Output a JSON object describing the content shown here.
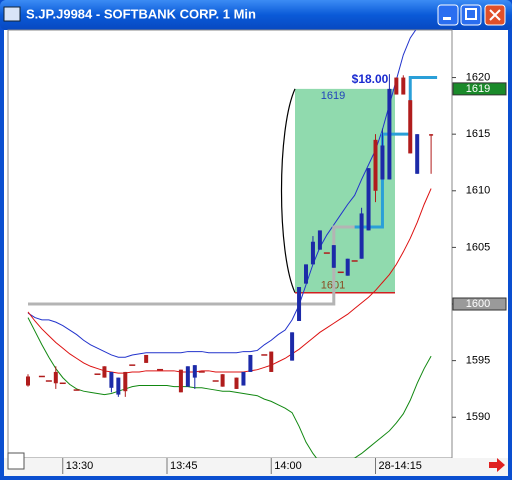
{
  "window": {
    "title": "S.JP.J9984 - SOFTBANK CORP. 1 Min"
  },
  "chart_data": {
    "type": "candlestick",
    "categories": [
      null,
      null,
      null,
      null,
      null,
      "13:30",
      null,
      null,
      null,
      null,
      null,
      null,
      null,
      null,
      null,
      null,
      null,
      null,
      null,
      null,
      "13:45",
      null,
      null,
      null,
      null,
      null,
      null,
      null,
      null,
      null,
      null,
      null,
      null,
      null,
      null,
      "14:00",
      null,
      null,
      null,
      null,
      null,
      null,
      null,
      null,
      null,
      null,
      null,
      null,
      null,
      null,
      "28-14:15",
      null,
      null,
      null,
      null,
      null,
      null,
      null,
      null
    ],
    "open": [
      1593.6,
      null,
      1593.6,
      1593.2,
      1594,
      1593,
      null,
      1592.4,
      null,
      null,
      1593.8,
      1594.5,
      1592.6,
      1592,
      1594,
      1594.6,
      null,
      1595.5,
      null,
      1594.2,
      null,
      null,
      1594.2,
      1592.7,
      1593.5,
      1594,
      null,
      1593.2,
      1593.8,
      null,
      1593.5,
      1592.8,
      1594,
      null,
      1595.5,
      1595.8,
      null,
      null,
      1595,
      1598.5,
      1601.8,
      1603.5,
      1604.8,
      1604.5,
      1603.2,
      1602.8,
      1602.5,
      1603.8,
      1604,
      1606.5,
      1614.5,
      1611,
      1611,
      1620,
      1620,
      1618,
      1611.5,
      null,
      1615
    ],
    "high": [
      1593.8,
      null,
      1593.6,
      1593.2,
      1594.5,
      1593,
      null,
      1592.4,
      null,
      null,
      1593.8,
      1594.5,
      1594,
      1593.5,
      1594,
      1594.6,
      null,
      1595.5,
      null,
      1594.2,
      null,
      null,
      1594.2,
      1594.5,
      1594.6,
      1594,
      null,
      1593.2,
      1593.8,
      null,
      1593.5,
      1594,
      1595.5,
      null,
      1595.5,
      1595.8,
      null,
      null,
      1597.5,
      1601.5,
      1603.5,
      1606,
      1606.5,
      1604.5,
      1605.2,
      1602.8,
      1604,
      1603.8,
      1608.5,
      1612,
      1615,
      1615.5,
      1620.3,
      1620,
      1620.2,
      1618,
      1615,
      null,
      1615
    ],
    "low": [
      1592.7,
      null,
      1593.6,
      1593.2,
      1592.5,
      1593,
      null,
      1592.4,
      null,
      null,
      1593.8,
      1593.5,
      1592.2,
      1591.8,
      1591.8,
      1594.6,
      null,
      1594.8,
      null,
      1594.2,
      null,
      null,
      1592.2,
      1592.7,
      1592.5,
      1594,
      null,
      1593.2,
      1592.7,
      null,
      1592.5,
      1592.8,
      1594,
      null,
      1595.5,
      1594,
      null,
      null,
      1595,
      1598.5,
      1601.8,
      1603.5,
      1604.8,
      1604.5,
      1603.2,
      1602.8,
      1602.5,
      1603.8,
      1604,
      1606.5,
      1609,
      1611,
      1611,
      1618.5,
      1618.5,
      1613.3,
      1611.5,
      null,
      1611.5
    ],
    "close": [
      1592.8,
      null,
      1593.6,
      1593.2,
      1593,
      1593,
      null,
      1592.4,
      null,
      null,
      1593.8,
      1593.5,
      1594,
      1593.5,
      1592.3,
      1594.6,
      null,
      1594.8,
      null,
      1594.2,
      null,
      null,
      1592.2,
      1594.5,
      1594.6,
      1594,
      null,
      1593.2,
      1592.7,
      null,
      1592.5,
      1594,
      1595.5,
      null,
      1595.5,
      1594,
      null,
      null,
      1597.5,
      1601.5,
      1603.5,
      1605.5,
      1606.5,
      1604.5,
      1605.2,
      1602.8,
      1604,
      1603.8,
      1608,
      1612,
      1610,
      1614,
      1619,
      1618.5,
      1618.5,
      1613.3,
      1615,
      null,
      1615
    ],
    "up_color": "#1c2aa8",
    "down_color": "#b01c1c",
    "lines": [
      {
        "color": "#2233cc",
        "values": [
          1599.2,
          1598.8,
          1598.6,
          1598.6,
          1598.4,
          1598.1,
          1597.7,
          1597.3,
          1596.8,
          1596.4,
          1596.1,
          1595.8,
          1595.5,
          1595.3,
          1595.3,
          1595.5,
          1595.6,
          1595.7,
          1595.7,
          1595.7,
          1595.7,
          1595.7,
          1595.7,
          1595.8,
          1595.8,
          1595.8,
          1595.7,
          1595.7,
          1595.7,
          1595.7,
          1595.7,
          1595.8,
          1595.8,
          1595.9,
          1596.4,
          1596.8,
          1597.3,
          1597.7,
          1598.6,
          1599.9,
          1601.7,
          1603.5,
          1605,
          1606.1,
          1607,
          1607.9,
          1608.8,
          1609.6,
          1611,
          1612.3,
          1613.6,
          1615.4,
          1617.6,
          1619.8,
          1622,
          1623.5,
          1624.4,
          1625.2,
          1626
        ]
      },
      {
        "color": "#dd1111",
        "values": [
          1599.3,
          1598.5,
          1597.8,
          1597.2,
          1596.6,
          1596.1,
          1595.6,
          1595.2,
          1594.8,
          1594.5,
          1594.3,
          1594.1,
          1594,
          1593.9,
          1593.9,
          1594,
          1594,
          1594.1,
          1594.1,
          1594.1,
          1594.1,
          1594.1,
          1594,
          1594,
          1594,
          1594.1,
          1594.1,
          1594,
          1594,
          1594,
          1594,
          1594,
          1594.1,
          1594.2,
          1594.4,
          1594.6,
          1594.9,
          1595.2,
          1595.6,
          1596,
          1596.5,
          1597,
          1597.5,
          1597.9,
          1598.3,
          1598.7,
          1599.1,
          1599.6,
          1600.1,
          1600.6,
          1601.2,
          1601.9,
          1602.6,
          1603.5,
          1604.6,
          1605.8,
          1607.2,
          1608.8,
          1610.2
        ]
      },
      {
        "color": "#118811",
        "values": [
          1598.8,
          1597.6,
          1596.4,
          1595.3,
          1594.3,
          1593.5,
          1592.9,
          1592.5,
          1592.3,
          1592.2,
          1592.1,
          1592,
          1592.1,
          1592.3,
          1592.5,
          1592.7,
          1592.8,
          1592.8,
          1592.8,
          1592.8,
          1592.8,
          1592.7,
          1592.7,
          1592.7,
          1592.6,
          1592.6,
          1592.5,
          1592.4,
          1592.3,
          1592.3,
          1592.2,
          1592.1,
          1592,
          1591.9,
          1591.6,
          1591.4,
          1591.1,
          1590.8,
          1590.4,
          1589.2,
          1587.8,
          1586.8,
          1586,
          1585.6,
          1585.6,
          1585.8,
          1586.1,
          1586.4,
          1586.8,
          1587.3,
          1587.8,
          1588.3,
          1588.8,
          1589.5,
          1590.3,
          1591.5,
          1593,
          1594.3,
          1595.4
        ]
      },
      {
        "color": "#b4b4b4",
        "step": true,
        "values": [
          1600,
          1600,
          1600,
          1600,
          1600,
          1600,
          1600,
          1600,
          1600,
          1600,
          1600,
          1600,
          1600,
          1600,
          1600,
          1600,
          1600,
          1600,
          1600,
          1600,
          1600,
          1600,
          1600,
          1600,
          1600,
          1600,
          1600,
          1600,
          1600,
          1600,
          1600,
          1600,
          1600,
          1600,
          1600,
          1600,
          1600,
          1600,
          1600,
          1600,
          1600,
          1600,
          1600,
          1600,
          1606.8,
          1606.8,
          1606.8,
          1606.8,
          null,
          null,
          null,
          null,
          null,
          null,
          null,
          null,
          null,
          null,
          null
        ]
      },
      {
        "color": "#2a9fd8",
        "step": true,
        "values": [
          null,
          null,
          null,
          null,
          null,
          null,
          null,
          null,
          null,
          null,
          null,
          null,
          null,
          null,
          null,
          null,
          null,
          null,
          null,
          null,
          null,
          null,
          null,
          null,
          null,
          null,
          null,
          null,
          null,
          null,
          null,
          null,
          null,
          null,
          null,
          null,
          null,
          null,
          null,
          null,
          null,
          null,
          null,
          null,
          null,
          null,
          null,
          1606.8,
          1606.8,
          1606.8,
          1606.8,
          1615,
          1615,
          1615,
          1615,
          1620,
          1620,
          1620,
          1620
        ]
      }
    ],
    "ylim": [
      1586.4,
      1624.2
    ],
    "yticks": [
      1590,
      1595,
      1600,
      1605,
      1610,
      1615,
      1620
    ],
    "trade_box": {
      "high": 1619,
      "low": 1601,
      "label": "$18.00",
      "color": "#7dd3a0"
    },
    "price_flags": [
      {
        "value": 1619,
        "color": "#1a8a2a"
      },
      {
        "value": 1600,
        "color": "#9a9a9a"
      }
    ]
  }
}
